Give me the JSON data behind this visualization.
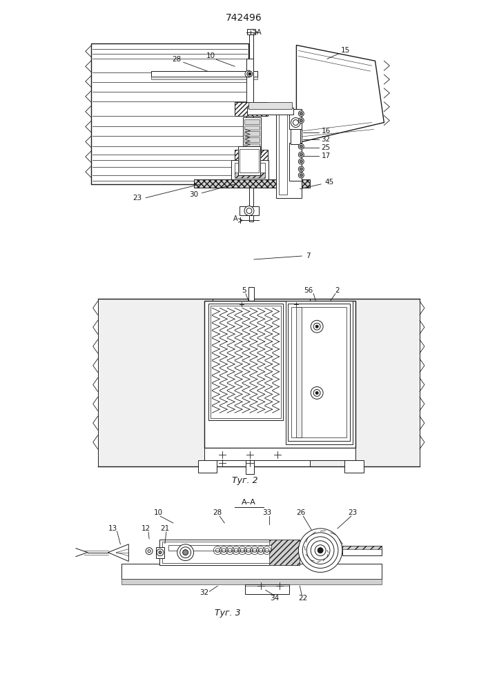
{
  "title": "742496",
  "fig2_label": "Τуг. 2",
  "fig3_label": "Τуг. 3",
  "fig3_section_label": "A–A",
  "background_color": "#ffffff",
  "line_color": "#1a1a1a",
  "title_fontsize": 10,
  "label_fontsize": 7.5,
  "fig_label_fontsize": 9
}
